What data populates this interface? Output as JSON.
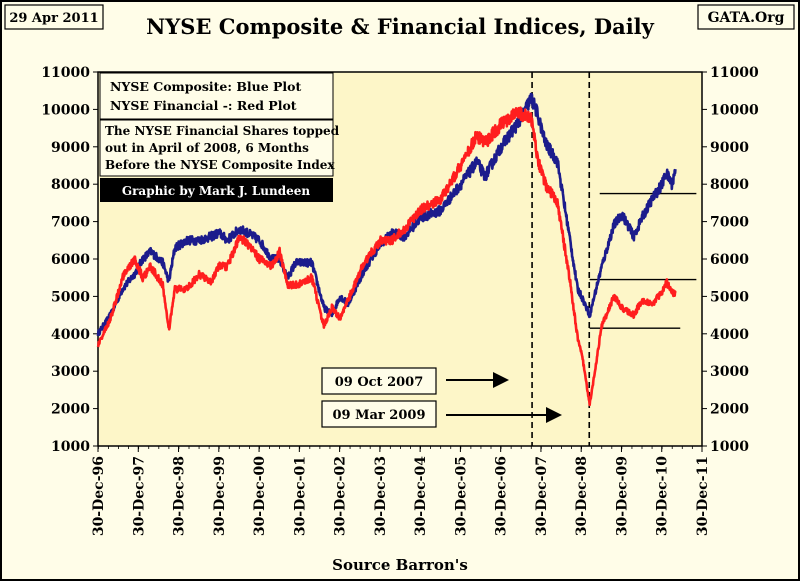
{
  "header": {
    "date": "29 Apr 2011",
    "title": "NYSE Composite & Financial Indices, Daily",
    "source_org": "GATA.Org"
  },
  "footer": {
    "source": "Source Barron's"
  },
  "legend": {
    "line1": "NYSE Composite: Blue Plot",
    "line2": "NYSE Financial -: Red Plot",
    "note1": "The NYSE Financial Shares  topped",
    "note2": "out in April of 2008, 6 Months",
    "note3": "Before the NYSE Composite Index",
    "credit": "Graphic by Mark J. Lundeen"
  },
  "annotations": {
    "label_oct2007": "09 Oct 2007",
    "label_mar2009": "09 Mar 2009"
  },
  "colors": {
    "background": "#fffde8",
    "plot_area": "#fdf6c8",
    "composite": "#1c1c8c",
    "financial": "#ff1e1e",
    "credit_bg": "#000000"
  },
  "chart_data": {
    "type": "line",
    "x_type": "year",
    "x_ticks": [
      "30-Dec-96",
      "30-Dec-97",
      "30-Dec-98",
      "30-Dec-99",
      "30-Dec-00",
      "30-Dec-01",
      "30-Dec-02",
      "30-Dec-03",
      "30-Dec-04",
      "30-Dec-05",
      "30-Dec-06",
      "30-Dec-07",
      "30-Dec-08",
      "30-Dec-09",
      "30-Dec-10",
      "30-Dec-11"
    ],
    "xlim": [
      1996.99,
      2011.99
    ],
    "ylim": [
      1000,
      11000
    ],
    "y_ticks": [
      1000,
      2000,
      3000,
      4000,
      5000,
      6000,
      7000,
      8000,
      9000,
      10000,
      11000
    ],
    "y_tick_labels": [
      "1000",
      "2000",
      "3000",
      "4000",
      "5000",
      "6000",
      "7000",
      "8000",
      "9000",
      "10000",
      "11000"
    ],
    "series": [
      {
        "name": "NYSE Composite",
        "color": "#1c1c8c",
        "x": [
          1996.99,
          1997.3,
          1997.6,
          1997.9,
          1998.1,
          1998.3,
          1998.6,
          1998.75,
          1998.9,
          1999.2,
          1999.5,
          1999.8,
          2000.0,
          2000.2,
          2000.5,
          2000.7,
          2001.0,
          2001.3,
          2001.5,
          2001.7,
          2001.9,
          2002.3,
          2002.6,
          2002.8,
          2003.0,
          2003.2,
          2003.6,
          2004.0,
          2004.3,
          2004.6,
          2005.0,
          2005.5,
          2006.0,
          2006.4,
          2006.6,
          2007.0,
          2007.4,
          2007.75,
          2007.9,
          2008.1,
          2008.4,
          2008.7,
          2008.9,
          2009.0,
          2009.2,
          2009.5,
          2009.8,
          2010.0,
          2010.3,
          2010.5,
          2010.75,
          2011.0,
          2011.1,
          2011.25,
          2011.33
        ],
        "y": [
          4000,
          4500,
          5200,
          5600,
          6000,
          6200,
          5900,
          5400,
          6300,
          6500,
          6500,
          6600,
          6700,
          6500,
          6800,
          6700,
          6500,
          6000,
          6000,
          5500,
          5900,
          5900,
          4700,
          4500,
          5000,
          4800,
          5700,
          6400,
          6700,
          6600,
          7100,
          7300,
          8000,
          8600,
          8200,
          9000,
          9600,
          10300,
          9900,
          9100,
          8600,
          6600,
          5200,
          5000,
          4500,
          5800,
          6900,
          7200,
          6600,
          7100,
          7600,
          8000,
          8300,
          8000,
          8400
        ]
      },
      {
        "name": "NYSE Financial",
        "color": "#ff1e1e",
        "x": [
          1996.99,
          1997.3,
          1997.6,
          1997.9,
          1998.1,
          1998.3,
          1998.6,
          1998.75,
          1998.9,
          1999.2,
          1999.5,
          1999.8,
          2000.0,
          2000.2,
          2000.5,
          2000.7,
          2001.0,
          2001.3,
          2001.5,
          2001.7,
          2001.9,
          2002.3,
          2002.6,
          2002.8,
          2003.0,
          2003.2,
          2003.6,
          2004.0,
          2004.3,
          2004.6,
          2005.0,
          2005.5,
          2006.0,
          2006.4,
          2006.6,
          2007.0,
          2007.4,
          2007.75,
          2007.9,
          2008.1,
          2008.4,
          2008.7,
          2008.9,
          2009.0,
          2009.2,
          2009.5,
          2009.8,
          2010.0,
          2010.3,
          2010.5,
          2010.75,
          2011.0,
          2011.1,
          2011.25,
          2011.33
        ],
        "y": [
          3700,
          4400,
          5500,
          6000,
          5500,
          5800,
          5300,
          4100,
          5200,
          5200,
          5600,
          5400,
          5800,
          5800,
          6600,
          6400,
          6000,
          5800,
          6200,
          5300,
          5300,
          5500,
          4200,
          4700,
          4400,
          4900,
          5900,
          6500,
          6500,
          6800,
          7300,
          7600,
          8500,
          9300,
          9100,
          9600,
          9900,
          9800,
          8700,
          8000,
          7500,
          5500,
          3900,
          3500,
          2100,
          4200,
          5000,
          4700,
          4500,
          4900,
          4800,
          5100,
          5400,
          5100,
          5100
        ]
      }
    ],
    "reference_lines": [
      {
        "type": "vertical_dashed",
        "x_date": "09 Oct 2007"
      },
      {
        "type": "vertical_dashed",
        "x_date": "09 Mar 2009"
      },
      {
        "type": "horizontal",
        "y": 7750,
        "x_start_date": "Jun 2009",
        "x_end_date": "Dec 2011"
      },
      {
        "type": "horizontal",
        "y": 5450,
        "x_start_date": "Mar 2009",
        "x_end_date": "Dec 2011"
      },
      {
        "type": "horizontal",
        "y": 4150,
        "x_start_date": "Mar 2009",
        "x_end_date": "Jun 2011"
      }
    ],
    "grid": false,
    "legend_position": "top-left"
  }
}
